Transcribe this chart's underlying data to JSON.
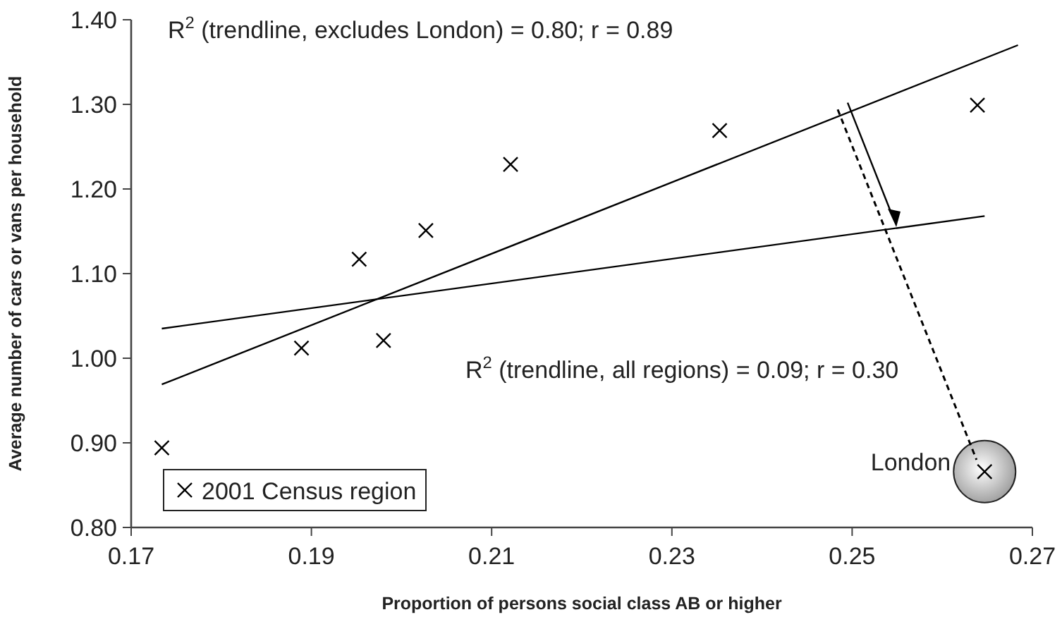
{
  "chart_data": {
    "type": "scatter",
    "xlabel": "Proportion of persons social class AB or higher",
    "ylabel": "Average number of cars or vans per household",
    "xlim": [
      0.17,
      0.27
    ],
    "xticks": [
      0.17,
      0.19,
      0.21,
      0.23,
      0.25,
      0.27
    ],
    "ylim": [
      0.8,
      1.4
    ],
    "yticks": [
      {
        "value": 0.8,
        "label": "0.80"
      },
      {
        "value": 0.9,
        "label": "0.90"
      },
      {
        "value": 1.0,
        "label": "1.00"
      },
      {
        "value": 1.1,
        "label": "1.10"
      },
      {
        "value": 1.2,
        "label": "1.20"
      },
      {
        "value": 1.3,
        "label": "1.30"
      },
      {
        "value": 1.4,
        "label": "1.40"
      }
    ],
    "grid": false,
    "legend": "bottom left",
    "series": [
      {
        "name": "2001 Census region",
        "marker": "cross",
        "color": "#000000",
        "x": [
          0.1734,
          0.1889,
          0.1953,
          0.198,
          0.2027,
          0.2121,
          0.2353,
          0.2639,
          0.2647
        ],
        "values": [
          0.894,
          1.012,
          1.117,
          1.021,
          1.151,
          1.229,
          1.269,
          1.299,
          0.866
        ]
      },
      {
        "type": "line",
        "marker": "none",
        "color": "#000000",
        "x": [
          0.1734,
          0.2684
        ],
        "values": [
          0.969,
          1.37
        ]
      },
      {
        "type": "line",
        "marker": "none",
        "color": "#000000",
        "x": [
          0.1734,
          0.2647
        ],
        "values": [
          1.035,
          1.168
        ]
      }
    ],
    "annotations": [
      "R$^{2}$ (trendline, excludes London) = 0.80; r = 0.89",
      "R$^{2}$ (trendline, all regions) = 0.09; r = 0.30",
      {
        "text": "London",
        "x": 0.2647,
        "y": 0.866
      }
    ]
  }
}
